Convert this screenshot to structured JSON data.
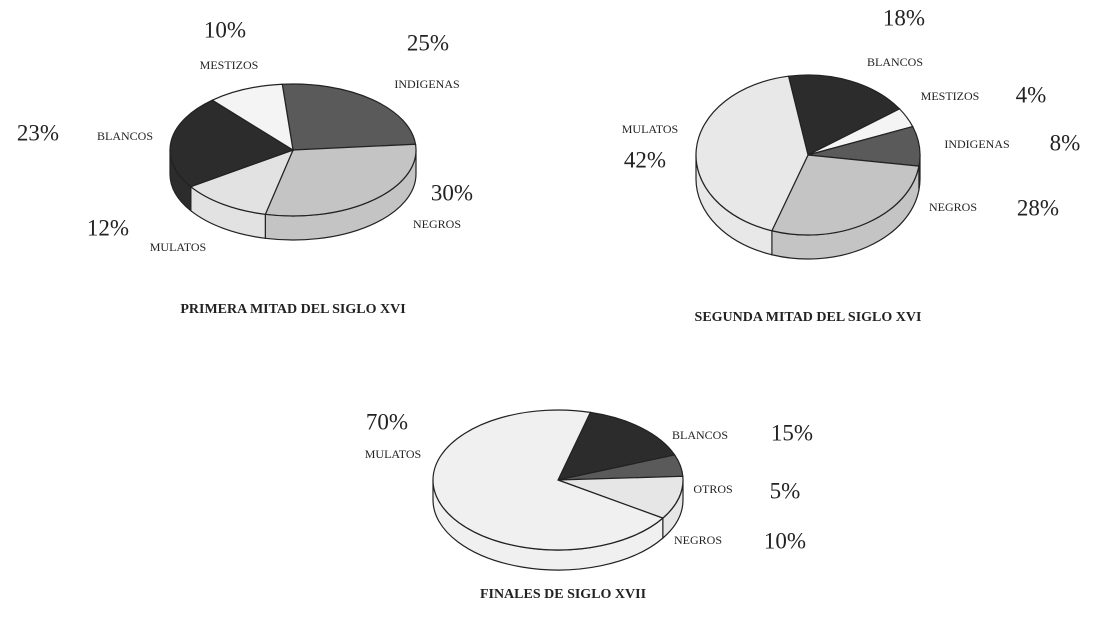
{
  "chart_data": [
    {
      "type": "pie",
      "title": "PRIMERA MITAD DEL SIGLO XVI",
      "categories": [
        "INDIGENAS",
        "NEGROS",
        "MULATOS",
        "BLANCOS",
        "MESTIZOS"
      ],
      "values": [
        25,
        30,
        12,
        23,
        10
      ],
      "value_labels": [
        "25%",
        "30%",
        "12%",
        "23%",
        "10%"
      ],
      "colors": [
        "#5a5a5a",
        "#c4c4c4",
        "#e2e2e2",
        "#2c2c2c",
        "#f4f4f4"
      ]
    },
    {
      "type": "pie",
      "title": "SEGUNDA MITAD DEL SIGLO XVI",
      "categories": [
        "BLANCOS",
        "MESTIZOS",
        "INDIGENAS",
        "NEGROS",
        "MULATOS"
      ],
      "values": [
        18,
        4,
        8,
        28,
        42
      ],
      "value_labels": [
        "18%",
        "4%",
        "8%",
        "28%",
        "42%"
      ],
      "colors": [
        "#2c2c2c",
        "#f4f4f4",
        "#5a5a5a",
        "#c4c4c4",
        "#e8e8e8"
      ]
    },
    {
      "type": "pie",
      "title": "FINALES DE SIGLO XVII",
      "categories": [
        "BLANCOS",
        "OTROS",
        "NEGROS",
        "MULATOS"
      ],
      "values": [
        15,
        5,
        10,
        70
      ],
      "value_labels": [
        "15%",
        "5%",
        "10%",
        "70%"
      ],
      "colors": [
        "#2c2c2c",
        "#5a5a5a",
        "#e6e6e6",
        "#f0f0f0"
      ]
    }
  ]
}
